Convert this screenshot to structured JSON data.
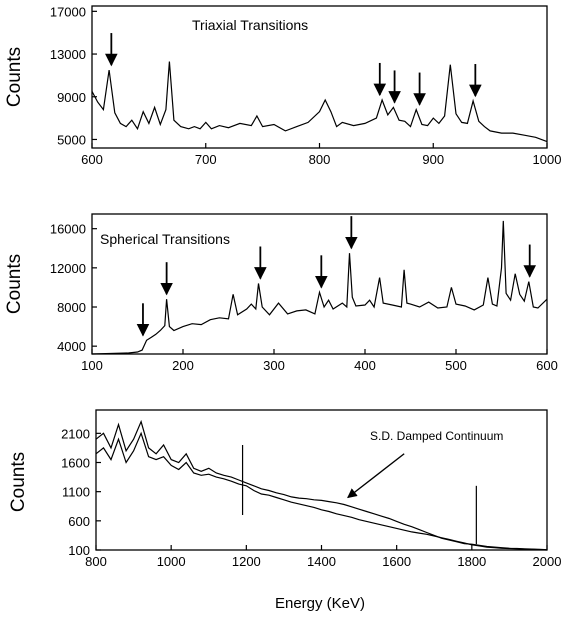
{
  "chart_data": [
    {
      "type": "line",
      "annotation": "Triaxial Transitions",
      "ylabel": "Counts",
      "xlabel": "",
      "xlim": [
        600,
        1000
      ],
      "ylim": [
        4200,
        17500
      ],
      "x_ticks": [
        600,
        700,
        800,
        900,
        1000
      ],
      "y_ticks": [
        5000,
        9000,
        13000,
        17000
      ],
      "grid": false,
      "series": [
        {
          "x": [
            600,
            605,
            610,
            615,
            620,
            625,
            630,
            635,
            640,
            645,
            650,
            655,
            660,
            665,
            668,
            672,
            678,
            685,
            690,
            695,
            700,
            705,
            712,
            720,
            730,
            740,
            745,
            750,
            760,
            770,
            780,
            790,
            800,
            805,
            810,
            815,
            820,
            830,
            840,
            850,
            855,
            860,
            865,
            870,
            875,
            880,
            885,
            890,
            895,
            900,
            905,
            910,
            915,
            920,
            925,
            930,
            935,
            940,
            945,
            950,
            960,
            970,
            980,
            990,
            1000
          ],
          "y": [
            9500,
            8500,
            7800,
            11500,
            7500,
            6500,
            6200,
            6800,
            6000,
            7600,
            6500,
            8000,
            6400,
            7800,
            12300,
            6800,
            6200,
            6000,
            6200,
            6000,
            6600,
            6000,
            6300,
            6100,
            6500,
            6300,
            7200,
            6200,
            6400,
            5800,
            6200,
            6600,
            7600,
            8700,
            7600,
            6200,
            6600,
            6300,
            6500,
            7000,
            8700,
            7300,
            8000,
            6800,
            6700,
            6200,
            7800,
            6400,
            6300,
            7000,
            6500,
            7200,
            12000,
            7400,
            6600,
            6500,
            8600,
            6700,
            6200,
            5800,
            5600,
            5600,
            5400,
            5200,
            4800
          ]
        }
      ],
      "arrows_x": [
        617,
        853,
        866,
        888,
        937
      ]
    },
    {
      "type": "line",
      "annotation": "Spherical Transitions",
      "ylabel": "Counts",
      "xlabel": "",
      "xlim": [
        100,
        600
      ],
      "ylim": [
        3200,
        17500
      ],
      "x_ticks": [
        100,
        200,
        300,
        400,
        500,
        600
      ],
      "y_ticks": [
        4000,
        8000,
        12000,
        16000
      ],
      "grid": false,
      "series": [
        {
          "x": [
            100,
            120,
            140,
            150,
            155,
            160,
            165,
            170,
            175,
            180,
            182,
            185,
            190,
            200,
            210,
            220,
            230,
            240,
            250,
            255,
            260,
            270,
            275,
            280,
            283,
            287,
            295,
            305,
            315,
            325,
            335,
            345,
            350,
            355,
            360,
            365,
            375,
            380,
            383,
            386,
            390,
            400,
            405,
            410,
            416,
            420,
            430,
            440,
            443,
            446,
            450,
            460,
            470,
            480,
            490,
            495,
            500,
            510,
            520,
            530,
            535,
            540,
            545,
            550,
            552,
            555,
            560,
            565,
            570,
            575,
            580,
            585,
            590,
            600
          ],
          "y": [
            3200,
            3250,
            3300,
            3400,
            3600,
            4600,
            4900,
            5200,
            5600,
            6100,
            8800,
            6000,
            5600,
            6000,
            6300,
            6200,
            6700,
            6900,
            6800,
            9300,
            7200,
            7800,
            8300,
            7800,
            10400,
            8000,
            7200,
            8400,
            7300,
            7600,
            7700,
            7300,
            9500,
            8000,
            8700,
            7800,
            8400,
            8000,
            13500,
            9000,
            8100,
            8200,
            8700,
            8000,
            11000,
            8400,
            8200,
            8000,
            11800,
            8400,
            8300,
            8000,
            8500,
            7900,
            8000,
            10000,
            8300,
            8100,
            7700,
            8200,
            11000,
            8300,
            8100,
            12000,
            16800,
            9400,
            8700,
            11400,
            9300,
            8600,
            10600,
            8000,
            7900,
            8800
          ]
        }
      ],
      "arrows_x": [
        156,
        182,
        285,
        352,
        385,
        581
      ]
    },
    {
      "type": "line",
      "annotation": "S.D. Damped Continuum",
      "ylabel": "Counts",
      "xlabel": "Energy (KeV)",
      "xlim": [
        800,
        2000
      ],
      "ylim": [
        100,
        2500
      ],
      "x_ticks": [
        800,
        1000,
        1200,
        1400,
        1600,
        1800,
        2000
      ],
      "y_ticks": [
        100,
        600,
        1100,
        1600,
        2100
      ],
      "grid": false,
      "series": [
        {
          "x": [
            800,
            820,
            840,
            860,
            880,
            900,
            920,
            940,
            960,
            980,
            1000,
            1020,
            1040,
            1060,
            1080,
            1100,
            1120,
            1140,
            1160,
            1180,
            1200,
            1220,
            1240,
            1260,
            1280,
            1300,
            1320,
            1340,
            1360,
            1380,
            1400,
            1420,
            1440,
            1460,
            1480,
            1500,
            1520,
            1540,
            1560,
            1580,
            1600,
            1620,
            1640,
            1660,
            1680,
            1700,
            1720,
            1740,
            1760,
            1780,
            1800,
            1820,
            1840,
            1860,
            1880,
            1900,
            1920,
            1940,
            1960,
            1980,
            2000
          ],
          "y": [
            2000,
            2100,
            1850,
            2250,
            1800,
            2000,
            2300,
            1850,
            1750,
            1900,
            1650,
            1600,
            1750,
            1500,
            1450,
            1500,
            1420,
            1380,
            1350,
            1300,
            1250,
            1200,
            1150,
            1120,
            1080,
            1050,
            1010,
            990,
            980,
            960,
            950,
            930,
            910,
            880,
            840,
            800,
            760,
            720,
            680,
            640,
            590,
            540,
            500,
            450,
            400,
            350,
            300,
            270,
            240,
            210,
            200,
            180,
            160,
            150,
            140,
            130,
            125,
            120,
            115,
            110,
            105
          ]
        },
        {
          "x": [
            800,
            820,
            840,
            860,
            880,
            900,
            920,
            940,
            960,
            980,
            1000,
            1020,
            1040,
            1060,
            1080,
            1100,
            1120,
            1140,
            1160,
            1180,
            1200,
            1220,
            1240,
            1260,
            1280,
            1300,
            1320,
            1340,
            1360,
            1380,
            1400,
            1420,
            1440,
            1460,
            1480,
            1500,
            1520,
            1540,
            1560,
            1580,
            1600,
            1620,
            1640,
            1660,
            1680,
            1700,
            1720,
            1740,
            1760,
            1780,
            1800,
            1820,
            1840,
            1860,
            1880,
            1900,
            1920,
            1940,
            1960,
            1980,
            2000
          ],
          "y": [
            1750,
            1850,
            1650,
            2000,
            1600,
            1800,
            2100,
            1700,
            1650,
            1700,
            1550,
            1480,
            1600,
            1420,
            1380,
            1400,
            1350,
            1320,
            1280,
            1230,
            1200,
            1120,
            1060,
            1040,
            1000,
            960,
            920,
            890,
            860,
            830,
            790,
            760,
            720,
            690,
            660,
            620,
            590,
            560,
            530,
            500,
            470,
            440,
            410,
            390,
            370,
            340,
            310,
            280,
            250,
            220,
            190,
            170,
            150,
            140,
            130,
            125,
            120,
            115,
            110,
            105,
            100
          ]
        }
      ],
      "marker_lines": [
        {
          "x": 1190,
          "y_top": 1900,
          "y_bottom": 700
        },
        {
          "x": 1812,
          "y_top": 1200,
          "y_bottom": 200
        }
      ],
      "arrow_target": {
        "x": 1470,
        "y": 1000
      },
      "arrow_tail": {
        "x": 1620,
        "y": 1750
      }
    }
  ]
}
